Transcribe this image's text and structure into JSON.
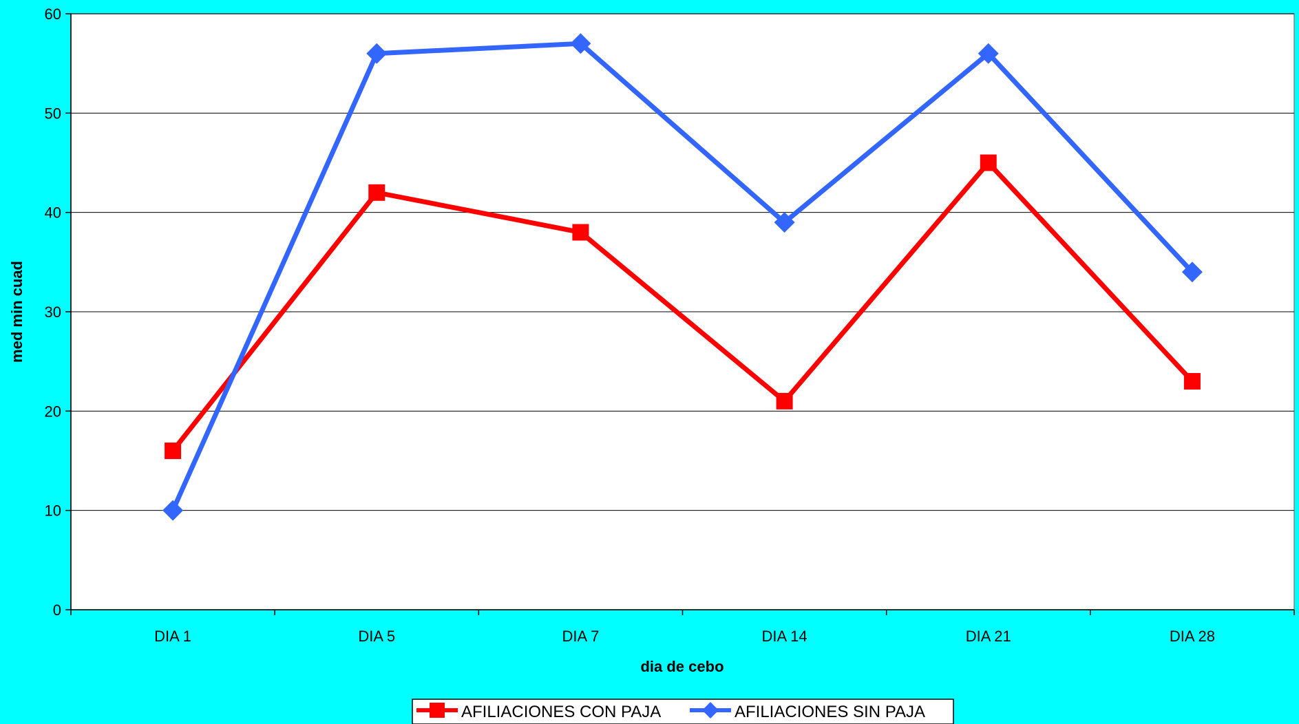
{
  "chart_data": {
    "type": "line",
    "title": "",
    "xlabel": "dia de cebo",
    "ylabel": "med min cuad",
    "categories": [
      "DIA 1",
      "DIA 5",
      "DIA 7",
      "DIA 14",
      "DIA 21",
      "DIA 28"
    ],
    "ylim": [
      0,
      60
    ],
    "yticks": [
      "0",
      "10",
      "20",
      "30",
      "40",
      "50",
      "60"
    ],
    "grid": true,
    "legend_position": "bottom",
    "background_color": "#00FFFF",
    "plot_background_color": "#FFFFFF",
    "series": [
      {
        "name": "AFILIACIONES CON PAJA",
        "color": "#FF0000",
        "marker": "square",
        "values": [
          16,
          42,
          38,
          21,
          45,
          23
        ]
      },
      {
        "name": "AFILIACIONES SIN PAJA",
        "color": "#3366FF",
        "marker": "diamond",
        "values": [
          10,
          56,
          57,
          39,
          56,
          34
        ]
      }
    ]
  }
}
